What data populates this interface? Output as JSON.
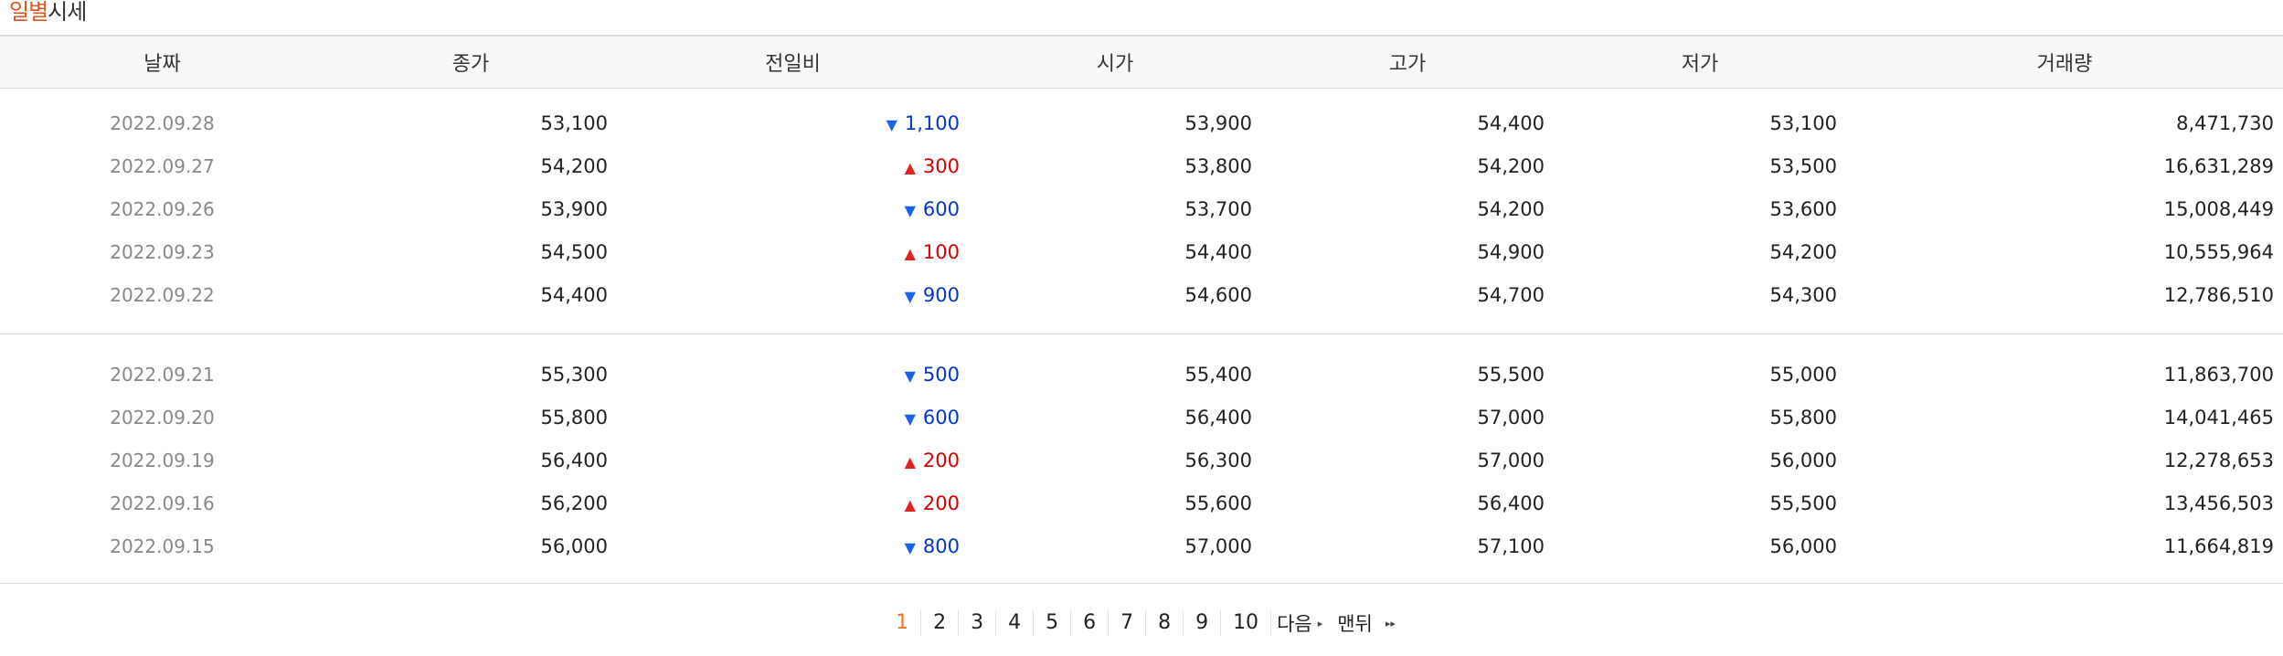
{
  "caption": {
    "highlight": "일별",
    "rest": "시세"
  },
  "columns": [
    "날짜",
    "종가",
    "전일비",
    "시가",
    "고가",
    "저가",
    "거래량"
  ],
  "group1": [
    {
      "date": "2022.09.28",
      "close": "53,100",
      "dir": "down",
      "arrow": "▼",
      "change": "1,100",
      "open": "53,900",
      "high": "54,400",
      "low": "53,100",
      "volume": "8,471,730"
    },
    {
      "date": "2022.09.27",
      "close": "54,200",
      "dir": "up",
      "arrow": "▲",
      "change": "300",
      "open": "53,800",
      "high": "54,200",
      "low": "53,500",
      "volume": "16,631,289"
    },
    {
      "date": "2022.09.26",
      "close": "53,900",
      "dir": "down",
      "arrow": "▼",
      "change": "600",
      "open": "53,700",
      "high": "54,200",
      "low": "53,600",
      "volume": "15,008,449"
    },
    {
      "date": "2022.09.23",
      "close": "54,500",
      "dir": "up",
      "arrow": "▲",
      "change": "100",
      "open": "54,400",
      "high": "54,900",
      "low": "54,200",
      "volume": "10,555,964"
    },
    {
      "date": "2022.09.22",
      "close": "54,400",
      "dir": "down",
      "arrow": "▼",
      "change": "900",
      "open": "54,600",
      "high": "54,700",
      "low": "54,300",
      "volume": "12,786,510"
    }
  ],
  "group2": [
    {
      "date": "2022.09.21",
      "close": "55,300",
      "dir": "down",
      "arrow": "▼",
      "change": "500",
      "open": "55,400",
      "high": "55,500",
      "low": "55,000",
      "volume": "11,863,700"
    },
    {
      "date": "2022.09.20",
      "close": "55,800",
      "dir": "down",
      "arrow": "▼",
      "change": "600",
      "open": "56,400",
      "high": "57,000",
      "low": "55,800",
      "volume": "14,041,465"
    },
    {
      "date": "2022.09.19",
      "close": "56,400",
      "dir": "up",
      "arrow": "▲",
      "change": "200",
      "open": "56,300",
      "high": "57,000",
      "low": "56,000",
      "volume": "12,278,653"
    },
    {
      "date": "2022.09.16",
      "close": "56,200",
      "dir": "up",
      "arrow": "▲",
      "change": "200",
      "open": "55,600",
      "high": "56,400",
      "low": "55,500",
      "volume": "13,456,503"
    },
    {
      "date": "2022.09.15",
      "close": "56,000",
      "dir": "down",
      "arrow": "▼",
      "change": "800",
      "open": "57,000",
      "high": "57,100",
      "low": "56,000",
      "volume": "11,664,819"
    }
  ],
  "paging": {
    "current": "1",
    "pages": [
      "1",
      "2",
      "3",
      "4",
      "5",
      "6",
      "7",
      "8",
      "9",
      "10"
    ],
    "next_label": "다음",
    "last_label": "맨뒤",
    "next_icon": "▸",
    "last_icon": "▸▸"
  },
  "colors": {
    "up": "#d60000",
    "down": "#0037c8",
    "accent": "#e2551f",
    "current_page": "#f3741f"
  }
}
